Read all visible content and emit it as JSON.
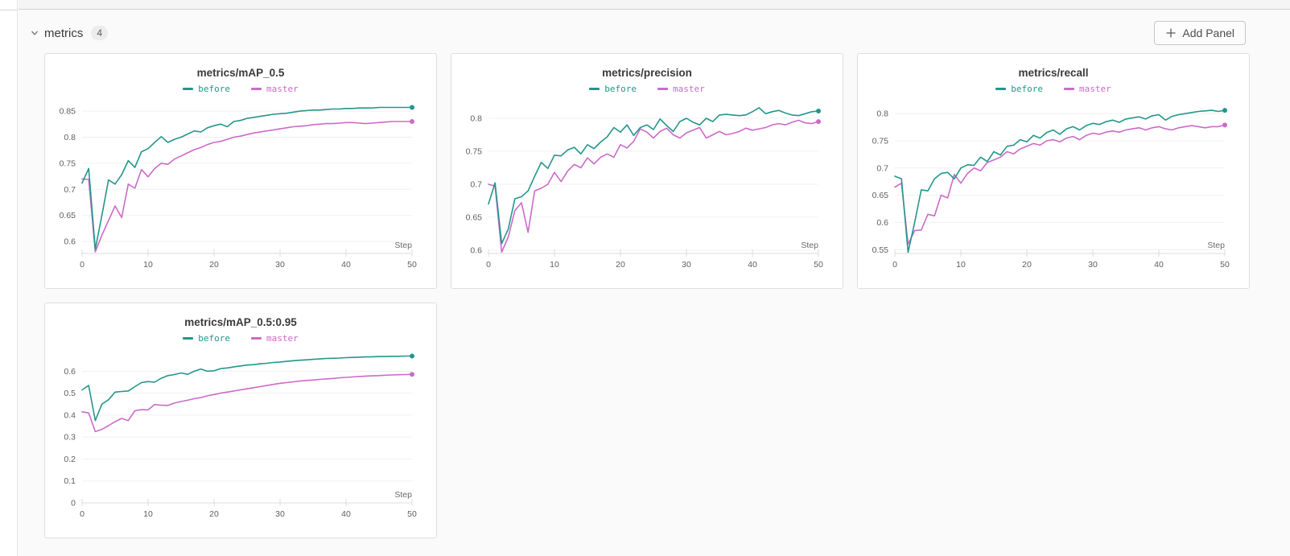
{
  "header": {
    "section_title": "metrics",
    "panel_count": "4",
    "add_panel_label": "Add Panel"
  },
  "chart_data": [
    {
      "type": "line",
      "title": "metrics/mAP_0.5",
      "xlabel": "Step",
      "legend_position": "top-center",
      "grid": true,
      "x_range": [
        0,
        50
      ],
      "x_step": 1,
      "xtick_values": [
        0,
        10,
        20,
        30,
        40,
        50
      ],
      "xtick_labels": [
        "0",
        "10",
        "20",
        "30",
        "40",
        "50"
      ],
      "ytick_values": [
        0.6,
        0.65,
        0.7,
        0.75,
        0.8,
        0.85
      ],
      "ytick_labels": [
        "0.6",
        "0.65",
        "0.7",
        "0.75",
        "0.8",
        "0.85"
      ],
      "ylim": [
        0.577,
        0.864
      ],
      "series": [
        {
          "name": "before",
          "color": "#23978b",
          "values": [
            0.712,
            0.74,
            0.585,
            0.65,
            0.718,
            0.71,
            0.728,
            0.755,
            0.742,
            0.772,
            0.778,
            0.79,
            0.801,
            0.79,
            0.796,
            0.8,
            0.806,
            0.812,
            0.81,
            0.818,
            0.822,
            0.825,
            0.82,
            0.83,
            0.832,
            0.836,
            0.838,
            0.84,
            0.842,
            0.844,
            0.845,
            0.846,
            0.848,
            0.85,
            0.851,
            0.852,
            0.852,
            0.853,
            0.854,
            0.854,
            0.855,
            0.855,
            0.856,
            0.856,
            0.856,
            0.857,
            0.857,
            0.857,
            0.857,
            0.857,
            0.857
          ]
        },
        {
          "name": "master",
          "color": "#cb6bc9",
          "values": [
            0.72,
            0.719,
            0.58,
            0.612,
            0.64,
            0.668,
            0.646,
            0.71,
            0.702,
            0.738,
            0.724,
            0.74,
            0.75,
            0.748,
            0.758,
            0.764,
            0.77,
            0.776,
            0.78,
            0.786,
            0.79,
            0.792,
            0.796,
            0.8,
            0.802,
            0.805,
            0.808,
            0.81,
            0.812,
            0.814,
            0.816,
            0.818,
            0.82,
            0.821,
            0.822,
            0.824,
            0.825,
            0.826,
            0.826,
            0.827,
            0.828,
            0.828,
            0.827,
            0.826,
            0.827,
            0.828,
            0.829,
            0.83,
            0.83,
            0.83,
            0.83
          ]
        }
      ]
    },
    {
      "type": "line",
      "title": "metrics/precision",
      "xlabel": "Step",
      "legend_position": "top-center",
      "grid": true,
      "x_range": [
        0,
        50
      ],
      "x_step": 1,
      "xtick_values": [
        0,
        10,
        20,
        30,
        40,
        50
      ],
      "xtick_labels": [
        "0",
        "10",
        "20",
        "30",
        "40",
        "50"
      ],
      "ytick_values": [
        0.6,
        0.65,
        0.7,
        0.75,
        0.8
      ],
      "ytick_labels": [
        "0.6",
        "0.65",
        "0.7",
        "0.75",
        "0.8"
      ],
      "ylim": [
        0.595,
        0.822
      ],
      "series": [
        {
          "name": "before",
          "color": "#23978b",
          "values": [
            0.67,
            0.702,
            0.61,
            0.632,
            0.678,
            0.681,
            0.69,
            0.712,
            0.733,
            0.724,
            0.744,
            0.743,
            0.752,
            0.756,
            0.746,
            0.76,
            0.754,
            0.764,
            0.772,
            0.786,
            0.779,
            0.79,
            0.774,
            0.786,
            0.79,
            0.783,
            0.799,
            0.789,
            0.78,
            0.795,
            0.8,
            0.794,
            0.79,
            0.8,
            0.795,
            0.805,
            0.806,
            0.805,
            0.804,
            0.805,
            0.81,
            0.816,
            0.807,
            0.81,
            0.812,
            0.808,
            0.805,
            0.804,
            0.807,
            0.81,
            0.811
          ]
        },
        {
          "name": "master",
          "color": "#cb6bc9",
          "values": [
            0.7,
            0.697,
            0.597,
            0.62,
            0.66,
            0.672,
            0.627,
            0.69,
            0.694,
            0.7,
            0.718,
            0.704,
            0.72,
            0.73,
            0.725,
            0.74,
            0.731,
            0.741,
            0.746,
            0.741,
            0.76,
            0.755,
            0.765,
            0.784,
            0.779,
            0.77,
            0.78,
            0.785,
            0.775,
            0.77,
            0.778,
            0.782,
            0.786,
            0.77,
            0.775,
            0.78,
            0.775,
            0.777,
            0.78,
            0.785,
            0.782,
            0.784,
            0.786,
            0.79,
            0.792,
            0.79,
            0.794,
            0.797,
            0.793,
            0.792,
            0.795
          ]
        }
      ]
    },
    {
      "type": "line",
      "title": "metrics/recall",
      "xlabel": "Step",
      "legend_position": "top-center",
      "grid": true,
      "x_range": [
        0,
        50
      ],
      "x_step": 1,
      "xtick_values": [
        0,
        10,
        20,
        30,
        40,
        50
      ],
      "xtick_labels": [
        "0",
        "10",
        "20",
        "30",
        "40",
        "50"
      ],
      "ytick_values": [
        0.55,
        0.6,
        0.65,
        0.7,
        0.75,
        0.8
      ],
      "ytick_labels": [
        "0.55",
        "0.6",
        "0.65",
        "0.7",
        "0.75",
        "0.8"
      ],
      "ylim": [
        0.543,
        0.818
      ],
      "series": [
        {
          "name": "before",
          "color": "#23978b",
          "values": [
            0.685,
            0.68,
            0.545,
            0.6,
            0.66,
            0.658,
            0.68,
            0.69,
            0.692,
            0.68,
            0.7,
            0.706,
            0.705,
            0.72,
            0.712,
            0.73,
            0.724,
            0.74,
            0.742,
            0.752,
            0.748,
            0.76,
            0.755,
            0.765,
            0.77,
            0.762,
            0.772,
            0.776,
            0.77,
            0.778,
            0.782,
            0.78,
            0.785,
            0.788,
            0.784,
            0.79,
            0.792,
            0.794,
            0.79,
            0.796,
            0.798,
            0.788,
            0.795,
            0.798,
            0.8,
            0.802,
            0.804,
            0.805,
            0.806,
            0.804,
            0.806
          ]
        },
        {
          "name": "master",
          "color": "#cb6bc9",
          "values": [
            0.665,
            0.672,
            0.56,
            0.585,
            0.586,
            0.615,
            0.612,
            0.65,
            0.645,
            0.688,
            0.672,
            0.69,
            0.7,
            0.695,
            0.71,
            0.715,
            0.72,
            0.73,
            0.726,
            0.735,
            0.74,
            0.745,
            0.742,
            0.75,
            0.752,
            0.748,
            0.755,
            0.758,
            0.752,
            0.76,
            0.764,
            0.762,
            0.766,
            0.768,
            0.766,
            0.77,
            0.772,
            0.774,
            0.77,
            0.774,
            0.776,
            0.772,
            0.77,
            0.774,
            0.776,
            0.778,
            0.776,
            0.774,
            0.776,
            0.776,
            0.779
          ]
        }
      ]
    },
    {
      "type": "line",
      "title": "metrics/mAP_0.5:0.95",
      "xlabel": "Step",
      "legend_position": "top-center",
      "grid": true,
      "x_range": [
        0,
        50
      ],
      "x_step": 1,
      "xtick_values": [
        0,
        10,
        20,
        30,
        40,
        50
      ],
      "xtick_labels": [
        "0",
        "10",
        "20",
        "30",
        "40",
        "50"
      ],
      "ytick_values": [
        0,
        0.1,
        0.2,
        0.3,
        0.4,
        0.5,
        0.6
      ],
      "ytick_labels": [
        "0",
        "0.1",
        "0.2",
        "0.3",
        "0.4",
        "0.5",
        "0.6"
      ],
      "ylim": [
        0,
        0.682
      ],
      "series": [
        {
          "name": "before",
          "color": "#23978b",
          "values": [
            0.515,
            0.535,
            0.375,
            0.45,
            0.47,
            0.505,
            0.508,
            0.51,
            0.53,
            0.548,
            0.553,
            0.55,
            0.568,
            0.58,
            0.585,
            0.592,
            0.586,
            0.6,
            0.61,
            0.6,
            0.602,
            0.612,
            0.615,
            0.62,
            0.624,
            0.628,
            0.63,
            0.634,
            0.636,
            0.64,
            0.642,
            0.645,
            0.648,
            0.65,
            0.652,
            0.654,
            0.656,
            0.658,
            0.659,
            0.66,
            0.662,
            0.663,
            0.664,
            0.665,
            0.666,
            0.667,
            0.667,
            0.668,
            0.668,
            0.669,
            0.669
          ]
        },
        {
          "name": "master",
          "color": "#cb6bc9",
          "values": [
            0.415,
            0.41,
            0.325,
            0.335,
            0.352,
            0.37,
            0.385,
            0.375,
            0.42,
            0.425,
            0.424,
            0.448,
            0.445,
            0.444,
            0.455,
            0.462,
            0.468,
            0.475,
            0.48,
            0.488,
            0.494,
            0.5,
            0.505,
            0.51,
            0.515,
            0.52,
            0.525,
            0.53,
            0.535,
            0.54,
            0.545,
            0.548,
            0.552,
            0.555,
            0.558,
            0.56,
            0.563,
            0.565,
            0.567,
            0.57,
            0.572,
            0.574,
            0.576,
            0.578,
            0.579,
            0.58,
            0.582,
            0.583,
            0.584,
            0.585,
            0.586
          ]
        }
      ]
    }
  ]
}
